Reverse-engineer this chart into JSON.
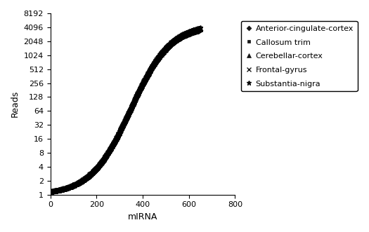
{
  "title": "",
  "xlabel": "mIRNA",
  "ylabel": "Reads",
  "xlim": [
    0,
    800
  ],
  "ylim_log": [
    1,
    8192
  ],
  "yticks": [
    1,
    2,
    4,
    8,
    16,
    32,
    64,
    128,
    256,
    512,
    1024,
    2048,
    4096,
    8192
  ],
  "xticks": [
    0,
    200,
    400,
    600,
    800
  ],
  "series": [
    {
      "label": "Anterior-cingulate-cortex",
      "marker": "D",
      "color": "#000000",
      "ms": 3.5
    },
    {
      "label": "Callosum trim",
      "marker": "s",
      "color": "#000000",
      "ms": 3.5
    },
    {
      "label": "Cerebellar-cortex",
      "marker": "^",
      "color": "#000000",
      "ms": 4.5
    },
    {
      "label": "Frontal-gyrus",
      "marker": "x",
      "color": "#000000",
      "ms": 4.5
    },
    {
      "label": "Substantia-nigra",
      "marker": "*",
      "color": "#000000",
      "ms": 5
    }
  ],
  "n_points": 650,
  "background_color": "#ffffff",
  "legend_fontsize": 8,
  "axis_fontsize": 9,
  "tick_fontsize": 8
}
